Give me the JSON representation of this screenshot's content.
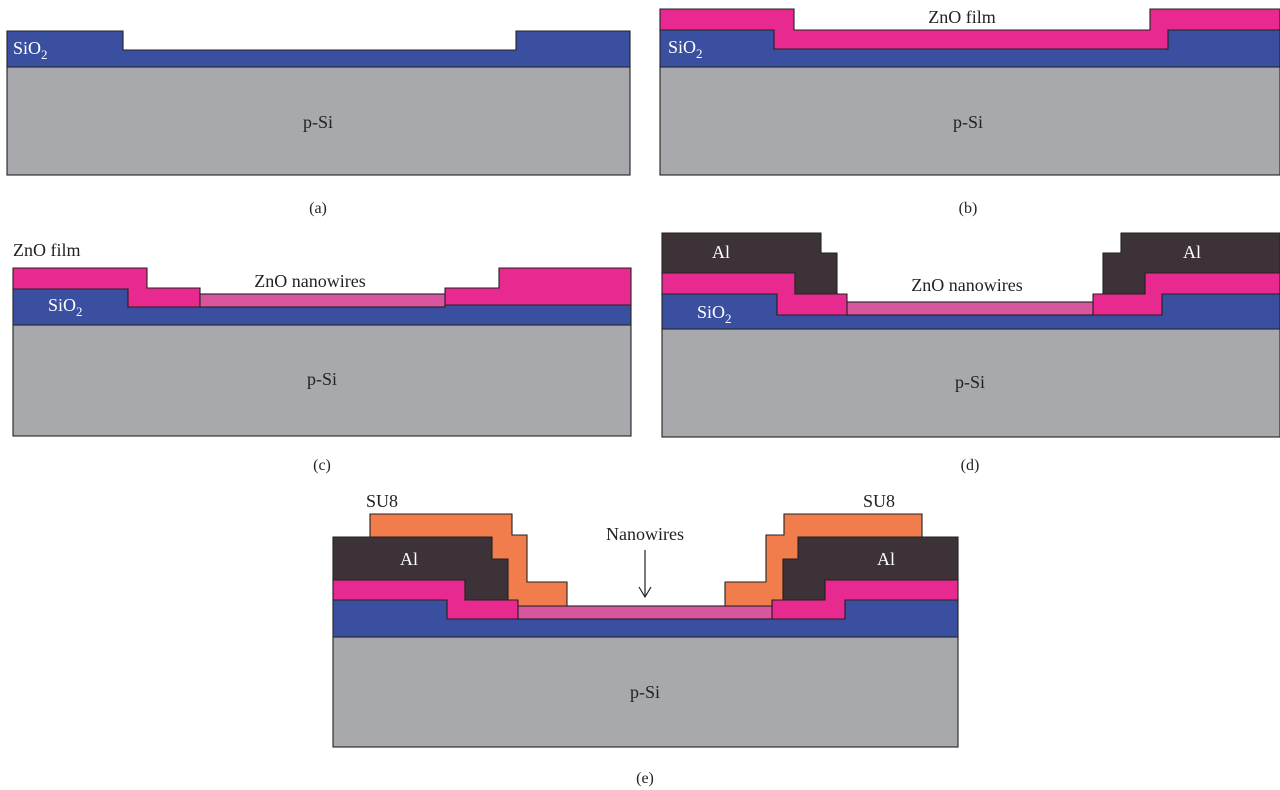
{
  "colors": {
    "substrate": "#a7a9ac",
    "oxide": "#3b4fa0",
    "zno_film": "#e8298f",
    "nanowires": "#d7569f",
    "aluminum": "#3c3237",
    "su8": "#f07d4b",
    "outline": "#222222"
  },
  "panel_a": {
    "caption": "(a)",
    "label_sio2": "SiO",
    "label_sio2_sub": "2",
    "label_psi": "p-Si"
  },
  "panel_b": {
    "caption": "(b)",
    "label_zno_film": "ZnO film",
    "label_sio2": "SiO",
    "label_sio2_sub": "2",
    "label_psi": "p-Si"
  },
  "panel_c": {
    "caption": "(c)",
    "label_zno_film": "ZnO film",
    "label_nanowires": "ZnO nanowires",
    "label_sio2": "SiO",
    "label_sio2_sub": "2",
    "label_psi": "p-Si"
  },
  "panel_d": {
    "caption": "(d)",
    "label_al_left": "Al",
    "label_al_right": "Al",
    "label_nanowires": "ZnO nanowires",
    "label_sio2": "SiO",
    "label_sio2_sub": "2",
    "label_psi": "p-Si"
  },
  "panel_e": {
    "caption": "(e)",
    "label_su8_left": "SU8",
    "label_su8_right": "SU8",
    "label_al_left": "Al",
    "label_al_right": "Al",
    "label_nanowires": "Nanowires",
    "label_psi": "p-Si"
  }
}
